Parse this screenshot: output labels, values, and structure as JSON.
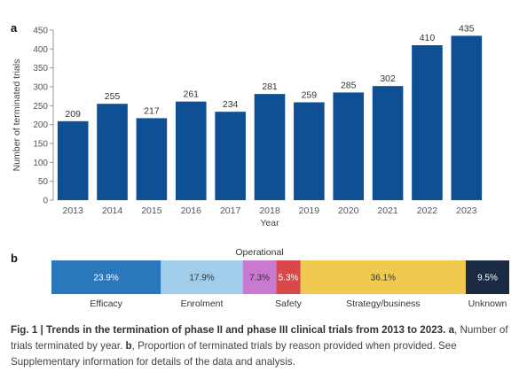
{
  "panel_a": {
    "letter": "a"
  },
  "panel_b": {
    "letter": "b"
  },
  "chart_data": [
    {
      "type": "bar",
      "categories": [
        "2013",
        "2014",
        "2015",
        "2016",
        "2017",
        "2018",
        "2019",
        "2020",
        "2021",
        "2022",
        "2023"
      ],
      "values": [
        209,
        255,
        217,
        261,
        234,
        281,
        259,
        285,
        302,
        410,
        435
      ],
      "xlabel": "Year",
      "ylabel": "Number of terminated trials",
      "ylim": [
        0,
        450
      ],
      "yticks": [
        0,
        50,
        100,
        150,
        200,
        250,
        300,
        350,
        400,
        450
      ],
      "grid": false,
      "color": "#0f4f96"
    },
    {
      "type": "bar",
      "orientation": "horizontal-stacked",
      "categories": [
        "Efficacy",
        "Enrolment",
        "Operational",
        "Safety",
        "Strategy/business",
        "Unknown"
      ],
      "values": [
        23.9,
        17.9,
        7.3,
        5.3,
        36.1,
        9.5
      ],
      "value_labels": [
        "23.9%",
        "17.9%",
        "7.3%",
        "5.3%",
        "36.1%",
        "9.5%"
      ],
      "unit": "%",
      "colors": [
        "#2b77bd",
        "#9fcdea",
        "#c97ad0",
        "#d8484b",
        "#f0ca4e",
        "#1b2b44"
      ],
      "label_colors": [
        "#ffffff",
        "#333333",
        "#333333",
        "#ffffff",
        "#333333",
        "#ffffff"
      ]
    }
  ],
  "caption": {
    "title": "Fig. 1 | Trends in the termination of phase II and phase III clinical trials from 2013 to 2023.",
    "part_a_letter": "a",
    "part_a_text": "Number of trials terminated by year.",
    "part_b_letter": "b",
    "part_b_text": "Proportion of terminated trials by reason provided when provided. See Supplementary information for details of the data and analysis."
  }
}
